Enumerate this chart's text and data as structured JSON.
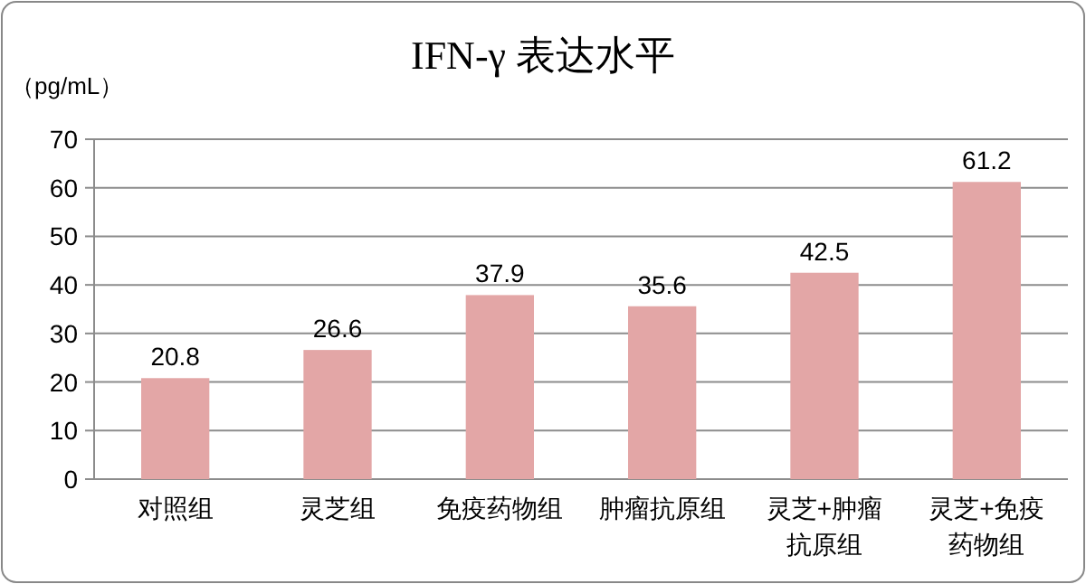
{
  "chart_data": {
    "type": "bar",
    "title": "IFN-γ 表达水平",
    "ylabel": "（pg/mL）",
    "categories": [
      "对照组",
      "灵芝组",
      "免疫药物组",
      "肿瘤抗原组",
      "灵芝+肿瘤抗原组",
      "灵芝+免疫药物组"
    ],
    "values": [
      20.8,
      26.6,
      37.9,
      35.6,
      42.5,
      61.2
    ],
    "color": "#e3a6a6",
    "ylim": [
      0,
      70
    ],
    "yticks": [
      0,
      10,
      20,
      30,
      40,
      50,
      60,
      70
    ],
    "grid": "y",
    "data_labels": true
  }
}
